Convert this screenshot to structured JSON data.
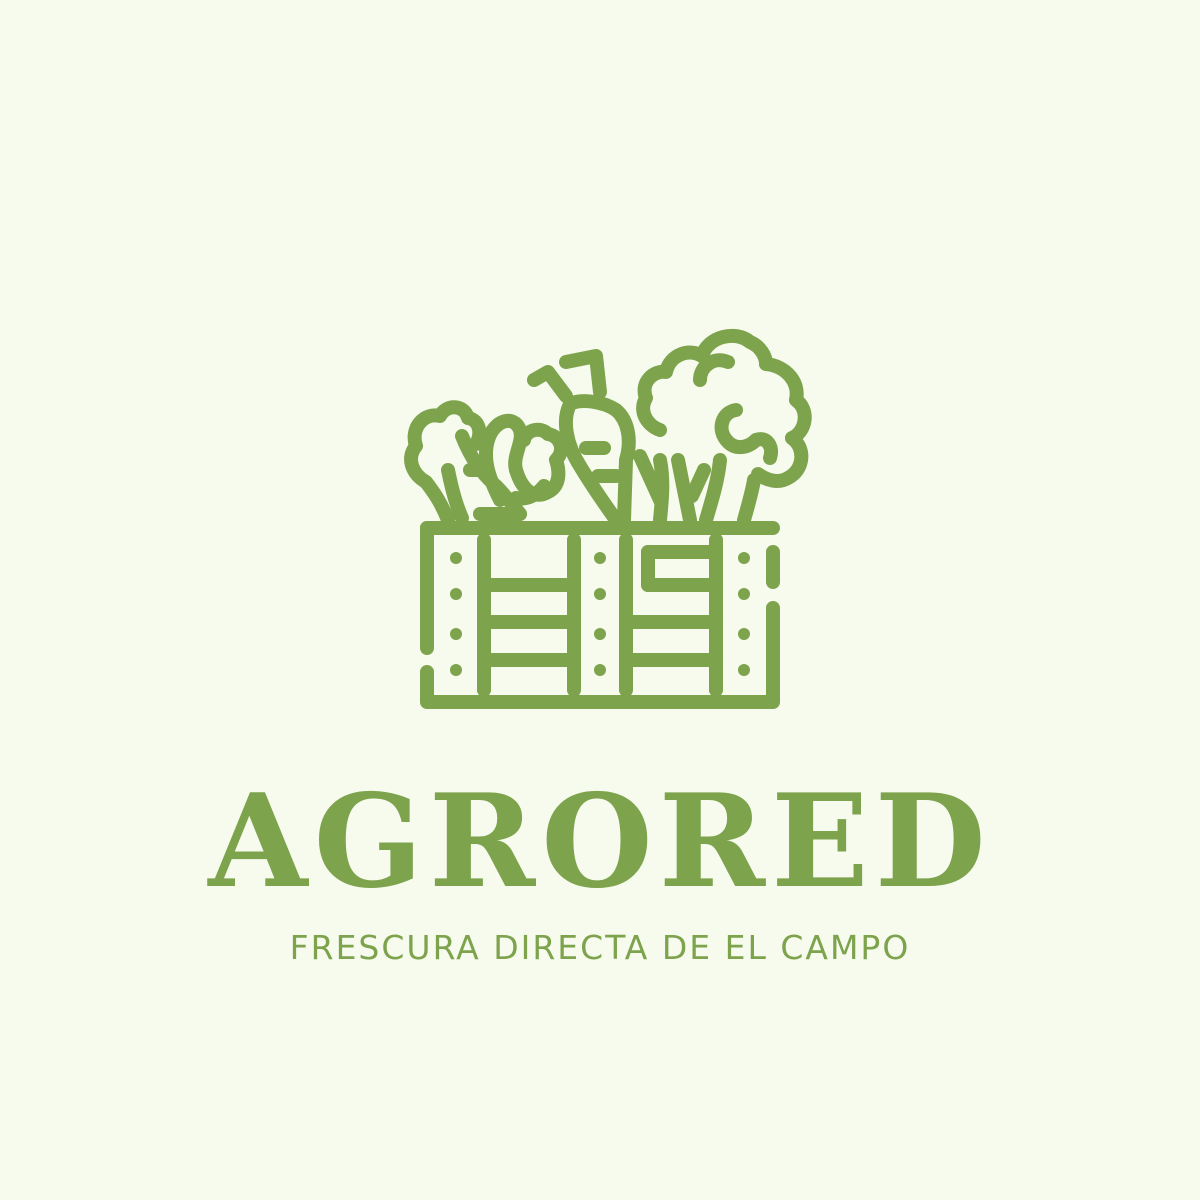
{
  "brand": {
    "name": "AGRORED",
    "tagline": "FRESCURA DIRECTA DE EL CAMPO"
  },
  "colors": {
    "background": "#f7fbee",
    "primary": "#7da34d"
  },
  "icons": {
    "logo": "vegetable-crate-icon"
  }
}
